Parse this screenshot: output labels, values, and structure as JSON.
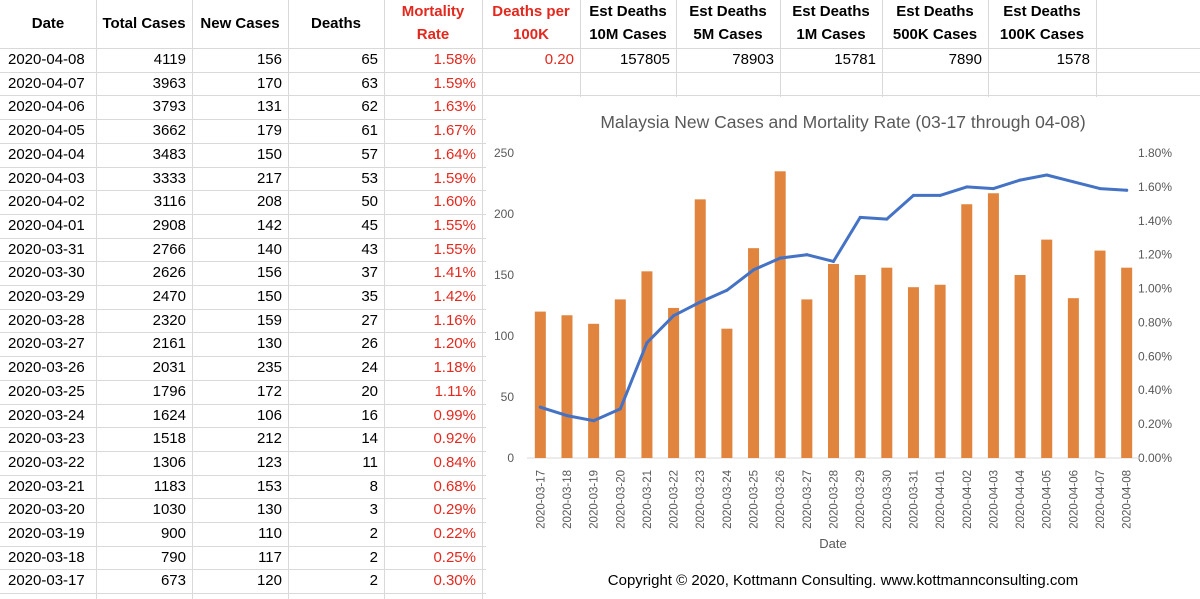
{
  "sheet": {
    "headers": [
      {
        "lines": [
          "Date"
        ],
        "red": false
      },
      {
        "lines": [
          "Total Cases"
        ],
        "red": false
      },
      {
        "lines": [
          "New Cases"
        ],
        "red": false
      },
      {
        "lines": [
          "Deaths"
        ],
        "red": false
      },
      {
        "lines": [
          "Mortality",
          "Rate"
        ],
        "red": true
      },
      {
        "lines": [
          "Deaths per",
          "100K"
        ],
        "red": true
      },
      {
        "lines": [
          "Est Deaths",
          "10M Cases"
        ],
        "red": false
      },
      {
        "lines": [
          "Est Deaths",
          "5M Cases"
        ],
        "red": false
      },
      {
        "lines": [
          "Est Deaths",
          "1M Cases"
        ],
        "red": false
      },
      {
        "lines": [
          "Est Deaths",
          "500K Cases"
        ],
        "red": false
      },
      {
        "lines": [
          "Est Deaths",
          "100K Cases"
        ],
        "red": false
      }
    ],
    "rows": [
      [
        "2020-04-08",
        "4119",
        "156",
        "65",
        "1.58%"
      ],
      [
        "2020-04-07",
        "3963",
        "170",
        "63",
        "1.59%"
      ],
      [
        "2020-04-06",
        "3793",
        "131",
        "62",
        "1.63%"
      ],
      [
        "2020-04-05",
        "3662",
        "179",
        "61",
        "1.67%"
      ],
      [
        "2020-04-04",
        "3483",
        "150",
        "57",
        "1.64%"
      ],
      [
        "2020-04-03",
        "3333",
        "217",
        "53",
        "1.59%"
      ],
      [
        "2020-04-02",
        "3116",
        "208",
        "50",
        "1.60%"
      ],
      [
        "2020-04-01",
        "2908",
        "142",
        "45",
        "1.55%"
      ],
      [
        "2020-03-31",
        "2766",
        "140",
        "43",
        "1.55%"
      ],
      [
        "2020-03-30",
        "2626",
        "156",
        "37",
        "1.41%"
      ],
      [
        "2020-03-29",
        "2470",
        "150",
        "35",
        "1.42%"
      ],
      [
        "2020-03-28",
        "2320",
        "159",
        "27",
        "1.16%"
      ],
      [
        "2020-03-27",
        "2161",
        "130",
        "26",
        "1.20%"
      ],
      [
        "2020-03-26",
        "2031",
        "235",
        "24",
        "1.18%"
      ],
      [
        "2020-03-25",
        "1796",
        "172",
        "20",
        "1.11%"
      ],
      [
        "2020-03-24",
        "1624",
        "106",
        "16",
        "0.99%"
      ],
      [
        "2020-03-23",
        "1518",
        "212",
        "14",
        "0.92%"
      ],
      [
        "2020-03-22",
        "1306",
        "123",
        "11",
        "0.84%"
      ],
      [
        "2020-03-21",
        "1183",
        "153",
        "8",
        "0.68%"
      ],
      [
        "2020-03-20",
        "1030",
        "130",
        "3",
        "0.29%"
      ],
      [
        "2020-03-19",
        "900",
        "110",
        "2",
        "0.22%"
      ],
      [
        "2020-03-18",
        "790",
        "117",
        "2",
        "0.25%"
      ],
      [
        "2020-03-17",
        "673",
        "120",
        "2",
        "0.30%"
      ]
    ],
    "first_row_extra": [
      "0.20",
      "157805",
      "78903",
      "15781",
      "7890",
      "1578"
    ]
  },
  "chart_data": {
    "type": "bar",
    "title": "Malaysia New Cases and Mortality Rate (03-17 through 04-08)",
    "xlabel": "Date",
    "categories": [
      "2020-03-17",
      "2020-03-18",
      "2020-03-19",
      "2020-03-20",
      "2020-03-21",
      "2020-03-22",
      "2020-03-23",
      "2020-03-24",
      "2020-03-25",
      "2020-03-26",
      "2020-03-27",
      "2020-03-28",
      "2020-03-29",
      "2020-03-30",
      "2020-03-31",
      "2020-04-01",
      "2020-04-02",
      "2020-04-03",
      "2020-04-04",
      "2020-04-05",
      "2020-04-06",
      "2020-04-07",
      "2020-04-08"
    ],
    "series": [
      {
        "type": "bar",
        "axis": "left",
        "color": "#e0843e",
        "values": [
          120,
          117,
          110,
          130,
          153,
          123,
          212,
          106,
          172,
          235,
          130,
          159,
          150,
          156,
          140,
          142,
          208,
          217,
          150,
          179,
          131,
          170,
          156
        ]
      },
      {
        "type": "line",
        "axis": "right",
        "color": "#4472c4",
        "values": [
          0.3,
          0.25,
          0.22,
          0.29,
          0.68,
          0.84,
          0.92,
          0.99,
          1.11,
          1.18,
          1.2,
          1.16,
          1.42,
          1.41,
          1.55,
          1.55,
          1.6,
          1.59,
          1.64,
          1.67,
          1.63,
          1.59,
          1.58
        ]
      }
    ],
    "ylim_left": [
      0,
      250
    ],
    "yticks_left": [
      "0",
      "50",
      "100",
      "150",
      "200",
      "250"
    ],
    "ylim_right": [
      0,
      1.8
    ],
    "yticks_right": [
      "0.00%",
      "0.20%",
      "0.40%",
      "0.60%",
      "0.80%",
      "1.00%",
      "1.20%",
      "1.40%",
      "1.60%",
      "1.80%"
    ],
    "grid": false
  },
  "footer": {
    "copyright": "Copyright © 2020, Kottmann Consulting.     www.kottmannconsulting.com"
  }
}
